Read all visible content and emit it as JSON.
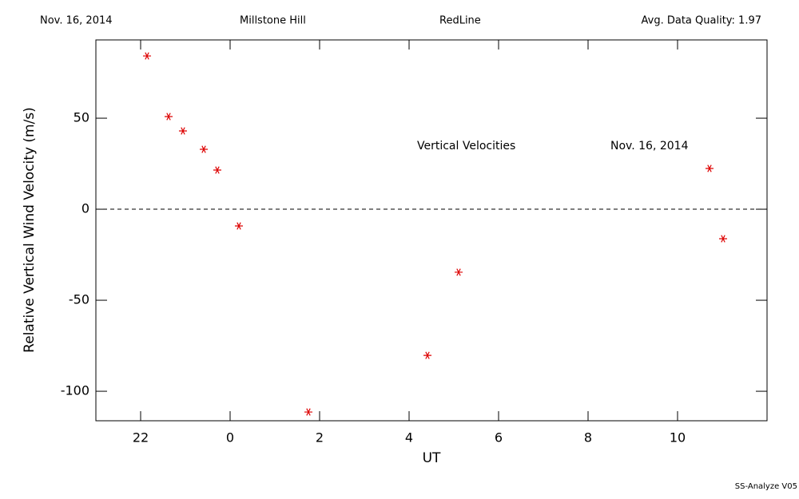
{
  "chart_data": {
    "type": "scatter",
    "header": [
      "Nov. 16, 2014",
      "Millstone Hill",
      "RedLine",
      "Avg. Data Quality: 1.97"
    ],
    "annotations": [
      "Vertical Velocities",
      "Nov. 16, 2014"
    ],
    "footer": "SS-Analyze V05",
    "x_label": "UT",
    "y_label": "Relative Vertical Wind Velocity (m/s)",
    "series": [
      {
        "color": "#dd0000",
        "x": [
          -1.857,
          -1.375,
          -1.054,
          -0.589,
          -0.286,
          0.196,
          1.75,
          4.411,
          5.107,
          10.714,
          11.018
        ],
        "values": [
          84.2,
          50.9,
          43.0,
          32.9,
          21.5,
          -9.2,
          -111.4,
          -80.3,
          -34.6,
          22.4,
          -16.2
        ]
      }
    ],
    "xlim": [
      -3,
      12
    ],
    "xticks": [
      {
        "value": -2,
        "label": "22"
      },
      0,
      2,
      4,
      6,
      8,
      10
    ],
    "ylim": [
      -116.2,
      93
    ],
    "yticks": [
      -100,
      -50,
      0,
      50
    ],
    "zero_line": true
  }
}
